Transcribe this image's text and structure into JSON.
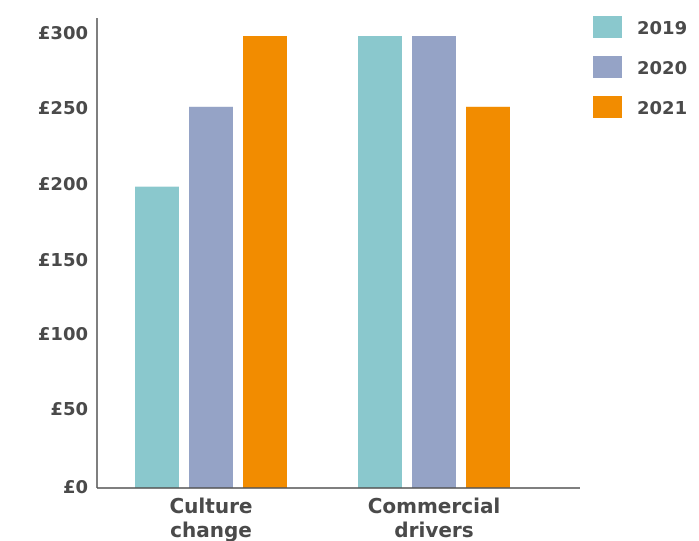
{
  "chart_data": {
    "type": "bar",
    "categories": [
      "Culture change",
      "Commercial drivers"
    ],
    "category_lines": [
      [
        "Culture",
        "change"
      ],
      [
        "Commercial",
        "drivers"
      ]
    ],
    "series": [
      {
        "name": "2019",
        "values": [
          200,
          300
        ],
        "color": "#8ac8cd"
      },
      {
        "name": "2020",
        "values": [
          253,
          300
        ],
        "color": "#95a3c6"
      },
      {
        "name": "2021",
        "values": [
          300,
          253
        ],
        "color": "#f28c00"
      }
    ],
    "yticks": [
      "£0",
      "£50",
      "£100",
      "£150",
      "£200",
      "£250",
      "£300"
    ],
    "ylim": [
      0,
      300
    ],
    "grid": false,
    "legend_position": "top-right",
    "title": "",
    "xlabel": "",
    "ylabel": ""
  }
}
